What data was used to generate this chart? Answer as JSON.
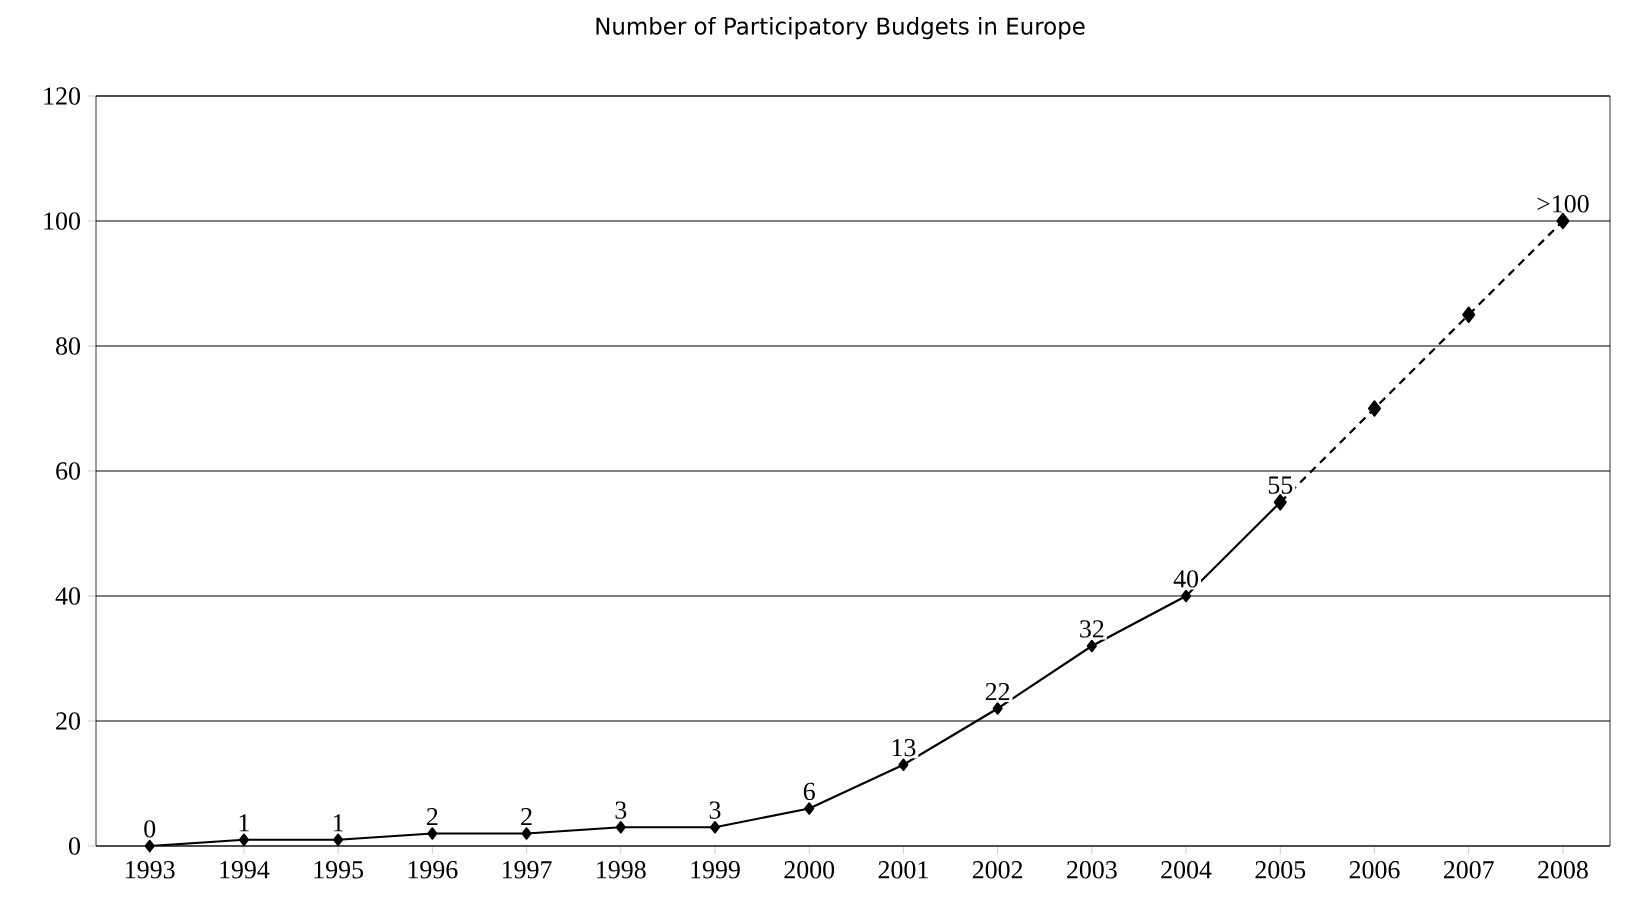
{
  "chart_data": {
    "type": "line",
    "title": "Number of Participatory Budgets in Europe",
    "categories": [
      "1993",
      "1994",
      "1995",
      "1996",
      "1997",
      "1998",
      "1999",
      "2000",
      "2001",
      "2002",
      "2003",
      "2004",
      "2005",
      "2006",
      "2007",
      "2008"
    ],
    "series": [
      {
        "color": "#000000",
        "line_style": "solid",
        "values": [
          0,
          1,
          1,
          2,
          2,
          3,
          3,
          6,
          13,
          22,
          32,
          40,
          55,
          null,
          null,
          null
        ],
        "value_labels": [
          "0",
          "1",
          "1",
          "2",
          "2",
          "3",
          "3",
          "6",
          "13",
          "22",
          "32",
          "40",
          "55",
          null,
          null,
          null
        ]
      },
      {
        "color": "#000000",
        "line_style": "dashed",
        "values": [
          null,
          null,
          null,
          null,
          null,
          null,
          null,
          null,
          null,
          null,
          null,
          null,
          55,
          70,
          85,
          100
        ],
        "value_labels": [
          null,
          null,
          null,
          null,
          null,
          null,
          null,
          null,
          null,
          null,
          null,
          null,
          null,
          null,
          null,
          ">100"
        ]
      }
    ],
    "ylim": [
      0,
      120
    ],
    "yticks": [
      0,
      20,
      40,
      60,
      80,
      100,
      120
    ],
    "grid": "y",
    "marker": "diamond"
  }
}
